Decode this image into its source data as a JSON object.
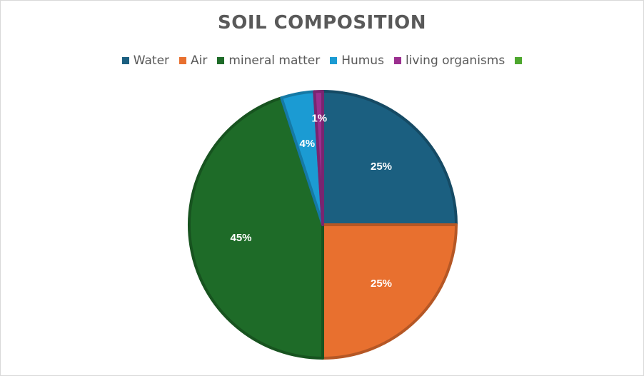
{
  "chart_data": {
    "type": "pie",
    "title": "SOIL COMPOSITION",
    "categories": [
      "Water",
      "Air",
      "mineral matter",
      "Humus",
      "living organisms",
      ""
    ],
    "values": [
      25,
      25,
      45,
      4,
      1,
      0
    ],
    "labels": [
      "25%",
      "25%",
      "45%",
      "4%",
      "1%",
      ""
    ],
    "colors": [
      "#1b5f80",
      "#e8702f",
      "#1e6b28",
      "#1b9bd3",
      "#9b2f8f",
      "#4ea72e"
    ],
    "legend_position": "top"
  }
}
